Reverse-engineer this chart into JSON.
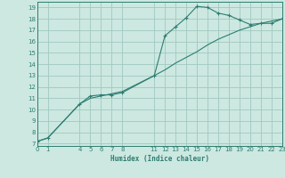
{
  "xlabel": "Humidex (Indice chaleur)",
  "bg_color": "#cce8e0",
  "line_color": "#2e7d72",
  "grid_color": "#a0c8c0",
  "line1_x": [
    0,
    1,
    4,
    5,
    6,
    7,
    8,
    11,
    12,
    13,
    14,
    15,
    16,
    17,
    18,
    19,
    20,
    21,
    22,
    23
  ],
  "line1_y": [
    7.2,
    7.5,
    10.5,
    11.2,
    11.3,
    11.3,
    11.5,
    13.0,
    16.5,
    17.3,
    18.1,
    19.1,
    19.0,
    18.5,
    18.3,
    17.9,
    17.5,
    17.6,
    17.6,
    18.0
  ],
  "line2_x": [
    0,
    1,
    4,
    5,
    6,
    7,
    8,
    11,
    12,
    13,
    14,
    15,
    16,
    17,
    18,
    19,
    20,
    21,
    22,
    23
  ],
  "line2_y": [
    7.2,
    7.5,
    10.5,
    11.0,
    11.2,
    11.4,
    11.6,
    13.0,
    13.5,
    14.1,
    14.6,
    15.1,
    15.7,
    16.2,
    16.6,
    17.0,
    17.3,
    17.6,
    17.8,
    18.0
  ],
  "xlim": [
    0,
    23
  ],
  "ylim": [
    6.8,
    19.5
  ],
  "xticks": [
    0,
    1,
    4,
    5,
    6,
    7,
    8,
    11,
    12,
    13,
    14,
    15,
    16,
    17,
    18,
    19,
    20,
    21,
    22,
    23
  ],
  "yticks": [
    7,
    8,
    9,
    10,
    11,
    12,
    13,
    14,
    15,
    16,
    17,
    18,
    19
  ]
}
